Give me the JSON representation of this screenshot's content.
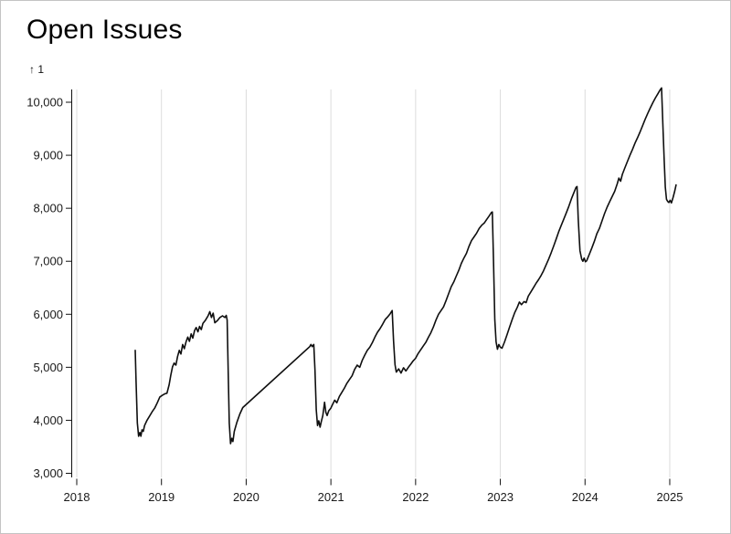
{
  "page": {
    "title": "Open Issues"
  },
  "chart_data": {
    "type": "line",
    "title": "Open Issues",
    "xlabel": "",
    "ylabel": "↑ 1",
    "grid": "vertical",
    "legend": "none",
    "xlim": [
      2018,
      2025.3
    ],
    "ylim": [
      3000,
      10000
    ],
    "colors": {
      "line": "#0f0f0f",
      "grid": "#dcdcdc",
      "axis": "#111111",
      "tick_text": "#1a1a1a"
    },
    "y_axis": {
      "label": "↑ 1",
      "ticks": [
        {
          "value": 3000,
          "label": "3,000"
        },
        {
          "value": 4000,
          "label": "4,000"
        },
        {
          "value": 5000,
          "label": "5,000"
        },
        {
          "value": 6000,
          "label": "6,000"
        },
        {
          "value": 7000,
          "label": "7,000"
        },
        {
          "value": 8000,
          "label": "8,000"
        },
        {
          "value": 9000,
          "label": "9,000"
        },
        {
          "value": 10000,
          "label": "10,000"
        }
      ]
    },
    "x_axis": {
      "ticks": [
        {
          "value": 2018,
          "label": "2018"
        },
        {
          "value": 2019,
          "label": "2019"
        },
        {
          "value": 2020,
          "label": "2020"
        },
        {
          "value": 2021,
          "label": "2021"
        },
        {
          "value": 2022,
          "label": "2022"
        },
        {
          "value": 2023,
          "label": "2023"
        },
        {
          "value": 2024,
          "label": "2024"
        },
        {
          "value": 2025,
          "label": "2025"
        }
      ]
    },
    "series": [
      {
        "name": "Open Issues",
        "color": "#0f0f0f",
        "points": [
          [
            2018.69,
            5320
          ],
          [
            2018.7,
            4740
          ],
          [
            2018.715,
            3950
          ],
          [
            2018.73,
            3700
          ],
          [
            2018.745,
            3770
          ],
          [
            2018.757,
            3700
          ],
          [
            2018.77,
            3820
          ],
          [
            2018.785,
            3790
          ],
          [
            2018.8,
            3900
          ],
          [
            2018.83,
            4000
          ],
          [
            2018.86,
            4080
          ],
          [
            2018.89,
            4160
          ],
          [
            2018.92,
            4230
          ],
          [
            2018.95,
            4330
          ],
          [
            2018.98,
            4440
          ],
          [
            2019.01,
            4470
          ],
          [
            2019.04,
            4500
          ],
          [
            2019.065,
            4510
          ],
          [
            2019.09,
            4670
          ],
          [
            2019.11,
            4850
          ],
          [
            2019.13,
            5010
          ],
          [
            2019.15,
            5080
          ],
          [
            2019.17,
            5040
          ],
          [
            2019.19,
            5200
          ],
          [
            2019.21,
            5320
          ],
          [
            2019.23,
            5250
          ],
          [
            2019.25,
            5430
          ],
          [
            2019.27,
            5350
          ],
          [
            2019.29,
            5480
          ],
          [
            2019.31,
            5570
          ],
          [
            2019.33,
            5490
          ],
          [
            2019.35,
            5630
          ],
          [
            2019.37,
            5550
          ],
          [
            2019.39,
            5690
          ],
          [
            2019.41,
            5750
          ],
          [
            2019.43,
            5670
          ],
          [
            2019.45,
            5770
          ],
          [
            2019.47,
            5710
          ],
          [
            2019.49,
            5830
          ],
          [
            2019.52,
            5890
          ],
          [
            2019.55,
            5970
          ],
          [
            2019.57,
            6050
          ],
          [
            2019.59,
            5940
          ],
          [
            2019.61,
            6020
          ],
          [
            2019.63,
            5840
          ],
          [
            2019.66,
            5880
          ],
          [
            2019.69,
            5940
          ],
          [
            2019.72,
            5970
          ],
          [
            2019.75,
            5940
          ],
          [
            2019.765,
            5980
          ],
          [
            2019.775,
            5890
          ],
          [
            2019.79,
            4700
          ],
          [
            2019.8,
            3950
          ],
          [
            2019.815,
            3560
          ],
          [
            2019.83,
            3660
          ],
          [
            2019.843,
            3600
          ],
          [
            2019.86,
            3790
          ],
          [
            2019.89,
            3960
          ],
          [
            2019.925,
            4120
          ],
          [
            2019.96,
            4240
          ],
          [
            2020.75,
            5390
          ],
          [
            2020.765,
            5430
          ],
          [
            2020.78,
            5390
          ],
          [
            2020.798,
            5430
          ],
          [
            2020.812,
            4950
          ],
          [
            2020.827,
            4200
          ],
          [
            2020.842,
            3900
          ],
          [
            2020.857,
            3990
          ],
          [
            2020.872,
            3870
          ],
          [
            2020.888,
            3980
          ],
          [
            2020.905,
            4090
          ],
          [
            2020.925,
            4340
          ],
          [
            2020.94,
            4150
          ],
          [
            2020.955,
            4090
          ],
          [
            2020.975,
            4180
          ],
          [
            2021.0,
            4230
          ],
          [
            2021.02,
            4300
          ],
          [
            2021.045,
            4380
          ],
          [
            2021.07,
            4330
          ],
          [
            2021.1,
            4450
          ],
          [
            2021.13,
            4530
          ],
          [
            2021.16,
            4610
          ],
          [
            2021.19,
            4700
          ],
          [
            2021.22,
            4770
          ],
          [
            2021.25,
            4840
          ],
          [
            2021.28,
            4960
          ],
          [
            2021.31,
            5040
          ],
          [
            2021.34,
            5000
          ],
          [
            2021.37,
            5130
          ],
          [
            2021.4,
            5230
          ],
          [
            2021.43,
            5320
          ],
          [
            2021.46,
            5380
          ],
          [
            2021.49,
            5470
          ],
          [
            2021.52,
            5570
          ],
          [
            2021.55,
            5660
          ],
          [
            2021.58,
            5730
          ],
          [
            2021.61,
            5810
          ],
          [
            2021.64,
            5900
          ],
          [
            2021.67,
            5950
          ],
          [
            2021.7,
            6010
          ],
          [
            2021.723,
            6070
          ],
          [
            2021.74,
            5500
          ],
          [
            2021.757,
            5050
          ],
          [
            2021.772,
            4910
          ],
          [
            2021.8,
            4970
          ],
          [
            2021.828,
            4890
          ],
          [
            2021.857,
            4990
          ],
          [
            2021.885,
            4930
          ],
          [
            2021.914,
            5000
          ],
          [
            2021.943,
            5060
          ],
          [
            2021.97,
            5120
          ],
          [
            2022.0,
            5170
          ],
          [
            2022.03,
            5260
          ],
          [
            2022.06,
            5330
          ],
          [
            2022.09,
            5400
          ],
          [
            2022.12,
            5470
          ],
          [
            2022.15,
            5560
          ],
          [
            2022.18,
            5650
          ],
          [
            2022.21,
            5760
          ],
          [
            2022.24,
            5890
          ],
          [
            2022.27,
            6000
          ],
          [
            2022.3,
            6070
          ],
          [
            2022.33,
            6140
          ],
          [
            2022.36,
            6260
          ],
          [
            2022.39,
            6390
          ],
          [
            2022.42,
            6520
          ],
          [
            2022.45,
            6610
          ],
          [
            2022.48,
            6720
          ],
          [
            2022.51,
            6830
          ],
          [
            2022.54,
            6960
          ],
          [
            2022.57,
            7060
          ],
          [
            2022.6,
            7150
          ],
          [
            2022.63,
            7280
          ],
          [
            2022.66,
            7390
          ],
          [
            2022.69,
            7460
          ],
          [
            2022.72,
            7530
          ],
          [
            2022.75,
            7620
          ],
          [
            2022.78,
            7680
          ],
          [
            2022.81,
            7720
          ],
          [
            2022.84,
            7790
          ],
          [
            2022.87,
            7860
          ],
          [
            2022.895,
            7920
          ],
          [
            2022.906,
            7930
          ],
          [
            2022.92,
            7000
          ],
          [
            2022.935,
            5900
          ],
          [
            2022.95,
            5480
          ],
          [
            2022.966,
            5340
          ],
          [
            2022.982,
            5430
          ],
          [
            2023.0,
            5380
          ],
          [
            2023.02,
            5360
          ],
          [
            2023.05,
            5480
          ],
          [
            2023.08,
            5620
          ],
          [
            2023.11,
            5760
          ],
          [
            2023.14,
            5900
          ],
          [
            2023.17,
            6030
          ],
          [
            2023.2,
            6130
          ],
          [
            2023.225,
            6230
          ],
          [
            2023.25,
            6180
          ],
          [
            2023.28,
            6240
          ],
          [
            2023.305,
            6220
          ],
          [
            2023.33,
            6340
          ],
          [
            2023.36,
            6420
          ],
          [
            2023.39,
            6500
          ],
          [
            2023.42,
            6580
          ],
          [
            2023.45,
            6650
          ],
          [
            2023.48,
            6730
          ],
          [
            2023.51,
            6820
          ],
          [
            2023.54,
            6930
          ],
          [
            2023.57,
            7040
          ],
          [
            2023.6,
            7160
          ],
          [
            2023.63,
            7290
          ],
          [
            2023.66,
            7420
          ],
          [
            2023.69,
            7560
          ],
          [
            2023.72,
            7680
          ],
          [
            2023.75,
            7800
          ],
          [
            2023.78,
            7920
          ],
          [
            2023.81,
            8040
          ],
          [
            2023.84,
            8180
          ],
          [
            2023.87,
            8300
          ],
          [
            2023.893,
            8390
          ],
          [
            2023.905,
            8410
          ],
          [
            2023.92,
            7800
          ],
          [
            2023.94,
            7200
          ],
          [
            2023.96,
            7040
          ],
          [
            2023.975,
            7000
          ],
          [
            2023.99,
            7060
          ],
          [
            2024.005,
            6990
          ],
          [
            2024.02,
            7010
          ],
          [
            2024.05,
            7130
          ],
          [
            2024.08,
            7250
          ],
          [
            2024.11,
            7380
          ],
          [
            2024.14,
            7520
          ],
          [
            2024.17,
            7620
          ],
          [
            2024.2,
            7760
          ],
          [
            2024.23,
            7900
          ],
          [
            2024.26,
            8020
          ],
          [
            2024.29,
            8120
          ],
          [
            2024.32,
            8220
          ],
          [
            2024.35,
            8320
          ],
          [
            2024.38,
            8460
          ],
          [
            2024.4,
            8570
          ],
          [
            2024.42,
            8510
          ],
          [
            2024.44,
            8640
          ],
          [
            2024.47,
            8760
          ],
          [
            2024.5,
            8880
          ],
          [
            2024.53,
            9000
          ],
          [
            2024.56,
            9110
          ],
          [
            2024.59,
            9230
          ],
          [
            2024.62,
            9330
          ],
          [
            2024.65,
            9440
          ],
          [
            2024.68,
            9560
          ],
          [
            2024.71,
            9680
          ],
          [
            2024.74,
            9790
          ],
          [
            2024.77,
            9890
          ],
          [
            2024.8,
            9990
          ],
          [
            2024.83,
            10080
          ],
          [
            2024.86,
            10160
          ],
          [
            2024.885,
            10230
          ],
          [
            2024.903,
            10270
          ],
          [
            2024.92,
            9500
          ],
          [
            2024.934,
            8900
          ],
          [
            2024.948,
            8400
          ],
          [
            2024.962,
            8170
          ],
          [
            2024.976,
            8130
          ],
          [
            2024.99,
            8110
          ],
          [
            2025.005,
            8150
          ],
          [
            2025.02,
            8100
          ],
          [
            2025.04,
            8210
          ],
          [
            2025.06,
            8330
          ],
          [
            2025.075,
            8440
          ]
        ]
      }
    ]
  }
}
